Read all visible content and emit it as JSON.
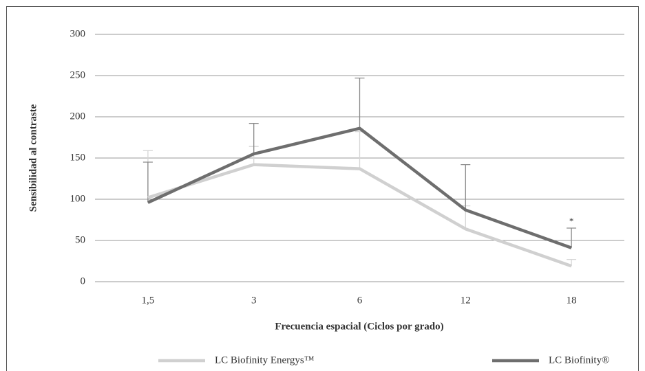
{
  "chart_data": {
    "type": "line",
    "categories": [
      "1,5",
      "3",
      "6",
      "12",
      "18"
    ],
    "series": [
      {
        "name": "LC Biofinity Energys™",
        "color": "#d0d0d0",
        "values": [
          102,
          142,
          137,
          64,
          19
        ],
        "errors": [
          57,
          22,
          45,
          28,
          8
        ]
      },
      {
        "name": "LC Biofinity®",
        "color": "#6e6e6e",
        "values": [
          96,
          155,
          186,
          87,
          41
        ],
        "errors": [
          49,
          37,
          61,
          55,
          24
        ]
      }
    ],
    "ylim": [
      0,
      300
    ],
    "yticks": [
      0,
      50,
      100,
      150,
      200,
      250,
      300
    ],
    "grid": true,
    "ylabel": "Sensibilidad al contraste",
    "xlabel": "Frecuencia espacial (Ciclos por grado)",
    "annotation": "*",
    "legend": "bottom"
  }
}
